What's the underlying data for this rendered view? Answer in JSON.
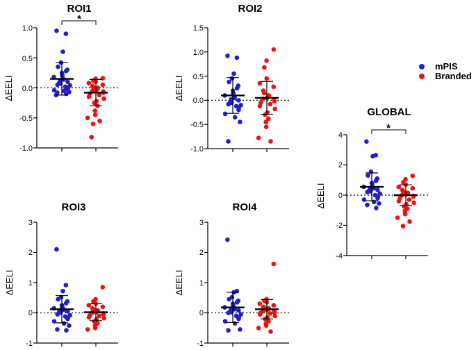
{
  "colors": {
    "mPIS": "#1f1fcc",
    "Branded": "#ee1111"
  },
  "legend": [
    {
      "name": "mPIS",
      "color": "#1f1fcc"
    },
    {
      "name": "Branded",
      "color": "#ee1111"
    }
  ],
  "chart_data": [
    {
      "id": "roi1",
      "type": "scatter",
      "title": "ROI1",
      "ylabel": "ΔEELI",
      "ylim": [
        -1.0,
        1.0
      ],
      "yticks": [
        "1.0",
        "0.5",
        "0.0",
        "-0.5",
        "-1.0"
      ],
      "yticks_values": [
        1.0,
        0.5,
        0.0,
        -0.5,
        -1.0
      ],
      "significance": "*",
      "series": [
        {
          "name": "mPIS",
          "mean": 0.15,
          "sd": 0.27,
          "values": [
            0.95,
            0.9,
            0.6,
            0.42,
            0.35,
            0.3,
            0.28,
            0.25,
            0.22,
            0.2,
            0.18,
            0.15,
            0.14,
            0.12,
            0.1,
            0.08,
            0.07,
            0.05,
            0.04,
            0.02,
            0.0,
            -0.02,
            -0.04,
            -0.05,
            -0.07,
            -0.08,
            -0.1,
            -0.12
          ]
        },
        {
          "name": "Branded",
          "mean": -0.08,
          "sd": 0.22,
          "values": [
            0.16,
            0.15,
            0.12,
            0.1,
            0.08,
            0.05,
            0.03,
            0.01,
            0.0,
            -0.02,
            -0.04,
            -0.05,
            -0.06,
            -0.08,
            -0.1,
            -0.12,
            -0.15,
            -0.18,
            -0.22,
            -0.25,
            -0.3,
            -0.38,
            -0.45,
            -0.5,
            -0.55,
            -0.6,
            -0.82
          ]
        }
      ]
    },
    {
      "id": "roi2",
      "type": "scatter",
      "title": "ROI2",
      "ylabel": "ΔEELI",
      "ylim": [
        -1.0,
        1.5
      ],
      "yticks": [
        "1.5",
        "1.0",
        "0.5",
        "0.0",
        "-0.5",
        "-1.0"
      ],
      "yticks_values": [
        1.5,
        1.0,
        0.5,
        0.0,
        -0.5,
        -1.0
      ],
      "series": [
        {
          "name": "mPIS",
          "mean": 0.1,
          "sd": 0.37,
          "values": [
            0.92,
            0.88,
            0.55,
            0.45,
            0.38,
            0.3,
            0.25,
            0.2,
            0.15,
            0.12,
            0.1,
            0.08,
            0.05,
            0.02,
            0.0,
            -0.03,
            -0.05,
            -0.08,
            -0.1,
            -0.12,
            -0.15,
            -0.2,
            -0.28,
            -0.35,
            -0.45,
            -0.85
          ]
        },
        {
          "name": "Branded",
          "mean": 0.05,
          "sd": 0.34,
          "values": [
            1.05,
            0.82,
            0.68,
            0.45,
            0.35,
            0.28,
            0.2,
            0.15,
            0.1,
            0.08,
            0.05,
            0.03,
            0.0,
            -0.02,
            -0.05,
            -0.08,
            -0.12,
            -0.18,
            -0.25,
            -0.3,
            -0.38,
            -0.45,
            -0.55,
            -0.78,
            -0.85
          ]
        }
      ]
    },
    {
      "id": "roi3",
      "type": "scatter",
      "title": "ROI3",
      "ylabel": "ΔEELI",
      "ylim": [
        -1,
        3
      ],
      "yticks": [
        "3",
        "2",
        "1",
        "0",
        "-1"
      ],
      "yticks_values": [
        3,
        2,
        1,
        0,
        -1
      ],
      "series": [
        {
          "name": "mPIS",
          "mean": 0.12,
          "sd": 0.45,
          "values": [
            2.1,
            0.92,
            0.72,
            0.52,
            0.45,
            0.38,
            0.32,
            0.25,
            0.2,
            0.18,
            0.15,
            0.12,
            0.1,
            0.08,
            0.05,
            0.02,
            0.0,
            -0.05,
            -0.08,
            -0.12,
            -0.15,
            -0.2,
            -0.28,
            -0.35,
            -0.42,
            -0.55,
            -0.58
          ]
        },
        {
          "name": "Branded",
          "mean": 0.02,
          "sd": 0.28,
          "values": [
            0.85,
            0.45,
            0.38,
            0.3,
            0.25,
            0.2,
            0.15,
            0.12,
            0.08,
            0.05,
            0.02,
            0.0,
            -0.02,
            -0.05,
            -0.08,
            -0.1,
            -0.15,
            -0.18,
            -0.22,
            -0.28,
            -0.35,
            -0.42,
            -0.5,
            -0.55
          ]
        }
      ]
    },
    {
      "id": "roi4",
      "type": "scatter",
      "title": "ROI4",
      "ylabel": "ΔEELI",
      "ylim": [
        -1,
        3
      ],
      "yticks": [
        "3",
        "2",
        "1",
        "0",
        "-1"
      ],
      "yticks_values": [
        3,
        2,
        1,
        0,
        -1
      ],
      "series": [
        {
          "name": "mPIS",
          "mean": 0.18,
          "sd": 0.5,
          "values": [
            2.42,
            0.72,
            0.68,
            0.52,
            0.45,
            0.4,
            0.35,
            0.3,
            0.25,
            0.2,
            0.18,
            0.15,
            0.12,
            0.1,
            0.08,
            0.05,
            0.02,
            0.0,
            -0.05,
            -0.1,
            -0.15,
            -0.2,
            -0.28,
            -0.35,
            -0.55,
            -0.58
          ]
        },
        {
          "name": "Branded",
          "mean": 0.12,
          "sd": 0.32,
          "values": [
            1.62,
            0.45,
            0.4,
            0.35,
            0.3,
            0.25,
            0.2,
            0.18,
            0.15,
            0.12,
            0.1,
            0.08,
            0.05,
            0.02,
            0.0,
            -0.02,
            -0.05,
            -0.1,
            -0.15,
            -0.2,
            -0.28,
            -0.35,
            -0.42,
            -0.5,
            -0.62
          ]
        }
      ]
    },
    {
      "id": "global",
      "type": "scatter",
      "title": "GLOBAL",
      "ylabel": "ΔEELI",
      "ylim": [
        -4,
        4
      ],
      "yticks": [
        "4",
        "2",
        "0",
        "-2",
        "-4"
      ],
      "yticks_values": [
        4,
        2,
        0,
        -2,
        -4
      ],
      "significance": "*",
      "series": [
        {
          "name": "mPIS",
          "mean": 0.55,
          "sd": 0.92,
          "values": [
            3.55,
            2.65,
            2.58,
            1.55,
            1.3,
            1.1,
            0.95,
            0.8,
            0.7,
            0.6,
            0.55,
            0.5,
            0.45,
            0.4,
            0.35,
            0.3,
            0.25,
            0.2,
            0.1,
            0.0,
            -0.1,
            -0.2,
            -0.3,
            -0.45,
            -0.55,
            -0.65,
            -0.85
          ]
        },
        {
          "name": "Branded",
          "mean": 0.0,
          "sd": 0.68,
          "values": [
            1.28,
            1.05,
            0.85,
            0.7,
            0.55,
            0.45,
            0.35,
            0.25,
            0.15,
            0.1,
            0.05,
            0.0,
            -0.05,
            -0.1,
            -0.2,
            -0.3,
            -0.4,
            -0.5,
            -0.6,
            -0.75,
            -0.9,
            -1.05,
            -1.25,
            -1.5,
            -1.75,
            -2.05
          ]
        }
      ]
    }
  ]
}
